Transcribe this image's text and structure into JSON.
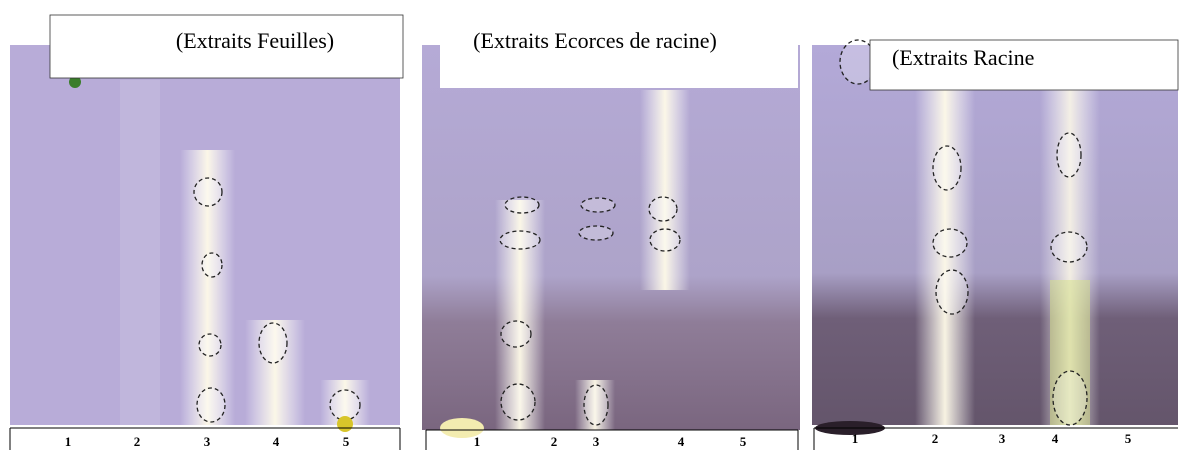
{
  "panels": [
    {
      "title": "(Extraits Feuilles)",
      "lanes": [
        "1",
        "2",
        "3",
        "4",
        "5"
      ]
    },
    {
      "title": "(Extraits Ecorces de racine)",
      "lanes": [
        "1",
        "2",
        "3",
        "4",
        "5"
      ]
    },
    {
      "title": "(Extraits Racine",
      "lanes": [
        "1",
        "2",
        "3",
        "4",
        "5"
      ]
    }
  ]
}
